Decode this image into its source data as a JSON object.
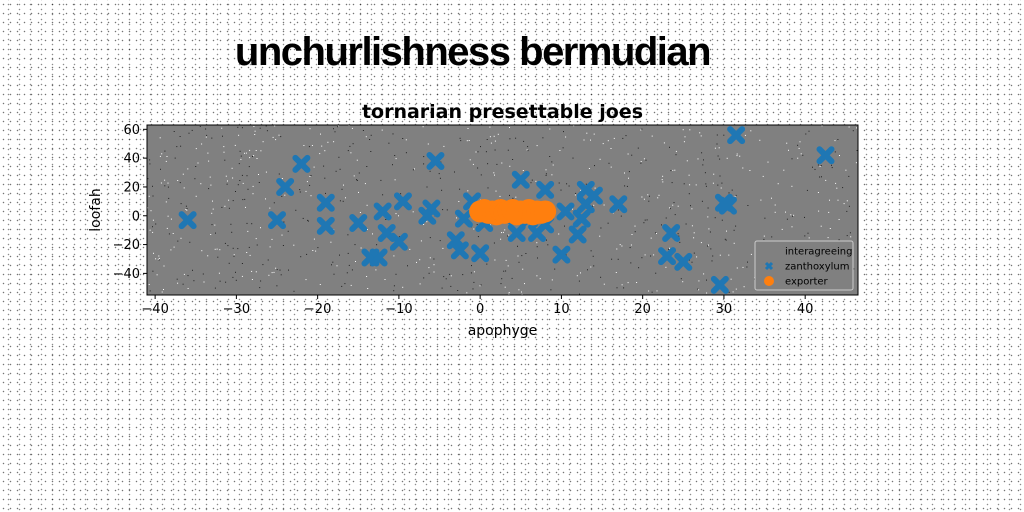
{
  "page": {
    "headline": "unchurlishness bermudian"
  },
  "colors": {
    "plot_background": "#808080",
    "series_x": "#1f77b4",
    "series_o": "#ff7f0e"
  },
  "chart_data": {
    "type": "scatter",
    "title": "tornarian presettable joes",
    "xlabel": "apophyge",
    "ylabel": "loofah",
    "xlim": [
      -41,
      46.5
    ],
    "ylim": [
      -55,
      63
    ],
    "xticks": [
      "−40",
      "−30",
      "−20",
      "−10",
      "0",
      "10",
      "20",
      "30",
      "40"
    ],
    "xtick_values": [
      -40,
      -30,
      -20,
      -10,
      0,
      10,
      20,
      30,
      40
    ],
    "yticks": [
      "−40",
      "−20",
      "0",
      "20",
      "40",
      "60"
    ],
    "ytick_values": [
      -40,
      -20,
      0,
      20,
      40,
      60
    ],
    "grid": false,
    "legend": {
      "placement": "lower-right",
      "entries": [
        "interagreeing",
        "zanthoxylum",
        "exporter"
      ]
    },
    "series": [
      {
        "name": "interagreeing",
        "marker": "none",
        "x": [],
        "y": []
      },
      {
        "name": "zanthoxylum",
        "marker": "x",
        "x": [
          -36,
          -25,
          -24,
          -22,
          -19,
          -19,
          -15,
          -13.5,
          -12.5,
          -12,
          -11.5,
          -10,
          -9.5,
          -6.5,
          -6,
          -5.5,
          -3,
          -2.5,
          -2,
          -1,
          0,
          0.5,
          1,
          3,
          4.5,
          5,
          6,
          7,
          8,
          8,
          10,
          10.5,
          12,
          12.5,
          13,
          13,
          14,
          17,
          23,
          23.5,
          25,
          29.5,
          30,
          30.5,
          31.5,
          42.5
        ],
        "y": [
          -3,
          -3,
          20,
          36,
          9,
          -7,
          -5,
          -29,
          -29,
          3,
          -12,
          -18,
          10,
          0,
          5,
          38,
          -17,
          -24,
          -2,
          10,
          -26,
          -5,
          4,
          0,
          -12,
          25,
          -2,
          -12,
          -6,
          18,
          -27,
          3,
          -13,
          -2,
          8,
          18,
          14,
          8,
          -28,
          -12,
          -32,
          -48,
          9,
          7,
          56,
          42
        ]
      },
      {
        "name": "exporter",
        "marker": "o",
        "x": [
          0,
          0.5,
          1,
          1.5,
          2,
          2.5,
          3,
          3.5,
          4,
          4.5,
          5,
          5.5,
          6,
          6.5,
          7,
          7.5,
          8
        ],
        "y": [
          3,
          4,
          2,
          3,
          1,
          4,
          2,
          3,
          4,
          1,
          3,
          2,
          4,
          1,
          3,
          2,
          3
        ]
      }
    ]
  }
}
